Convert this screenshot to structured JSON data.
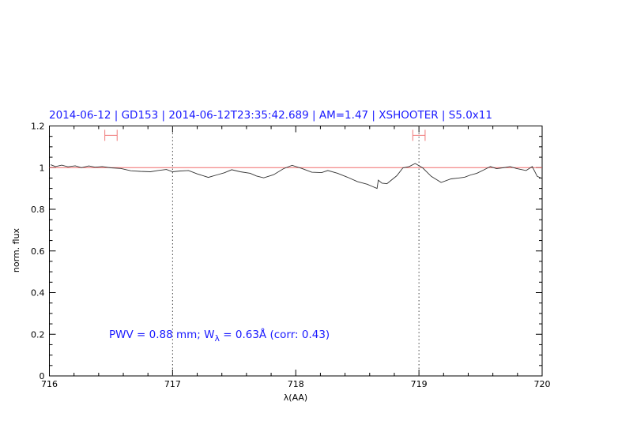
{
  "chart_data": {
    "type": "line",
    "title": "2014-06-12 | GD153 | 2014-06-12T23:35:42.689 | AM=1.47 | XSHOOTER | S5.0x11",
    "xlabel": "λ(AA)",
    "ylabel": "norm. flux",
    "xlim": [
      716,
      720
    ],
    "ylim": [
      0,
      1.2
    ],
    "xticks": [
      "716",
      "717",
      "718",
      "719",
      "720"
    ],
    "yticks": [
      "0",
      "0.2",
      "0.4",
      "0.6",
      "0.8",
      "1",
      "1.2"
    ],
    "grid": false,
    "reference_line": {
      "y": 1.0,
      "color": "#f06a6a"
    },
    "vertical_dotted_lines": [
      717,
      719
    ],
    "error_bars": [
      {
        "x_min": 716.45,
        "x_max": 716.55,
        "y": 1.155,
        "color": "#f07a7a"
      },
      {
        "x_min": 718.95,
        "x_max": 719.05,
        "y": 1.155,
        "color": "#f07a7a"
      }
    ],
    "annotation": {
      "parts": [
        "PWV = 0.88 mm; W",
        "λ",
        " = 0.63Å (corr: 0.43)"
      ]
    },
    "series": [
      {
        "color": "#333333",
        "x": [
          716.01,
          716.05,
          716.1,
          716.15,
          716.21,
          716.26,
          716.32,
          716.37,
          716.43,
          716.5,
          716.58,
          716.66,
          716.74,
          716.82,
          716.88,
          716.95,
          717.0,
          717.06,
          717.13,
          717.2,
          717.29,
          717.37,
          717.42,
          717.48,
          717.55,
          717.63,
          717.68,
          717.74,
          717.82,
          717.9,
          717.97,
          718.05,
          718.13,
          718.21,
          718.26,
          718.34,
          718.42,
          718.5,
          718.58,
          718.62,
          718.66,
          718.67,
          718.7,
          718.74,
          718.82,
          718.87,
          718.92,
          718.97,
          719.03,
          719.1,
          719.18,
          719.26,
          719.32,
          719.37,
          719.42,
          719.47,
          719.53,
          719.58,
          719.63,
          719.68,
          719.74,
          719.79,
          719.87,
          719.92,
          719.96,
          720.0
        ],
        "y": [
          1.014,
          1.005,
          1.012,
          1.004,
          1.009,
          1.0,
          1.008,
          1.002,
          1.005,
          0.999,
          0.996,
          0.985,
          0.982,
          0.98,
          0.986,
          0.991,
          0.98,
          0.984,
          0.986,
          0.97,
          0.953,
          0.967,
          0.975,
          0.99,
          0.98,
          0.973,
          0.96,
          0.951,
          0.966,
          0.995,
          1.011,
          0.996,
          0.978,
          0.976,
          0.986,
          0.973,
          0.954,
          0.933,
          0.92,
          0.91,
          0.9,
          0.94,
          0.925,
          0.923,
          0.961,
          0.999,
          1.005,
          1.02,
          0.999,
          0.958,
          0.929,
          0.946,
          0.95,
          0.954,
          0.965,
          0.973,
          0.99,
          1.005,
          0.995,
          0.999,
          1.005,
          0.996,
          0.986,
          1.005,
          0.958,
          0.948
        ]
      }
    ]
  }
}
